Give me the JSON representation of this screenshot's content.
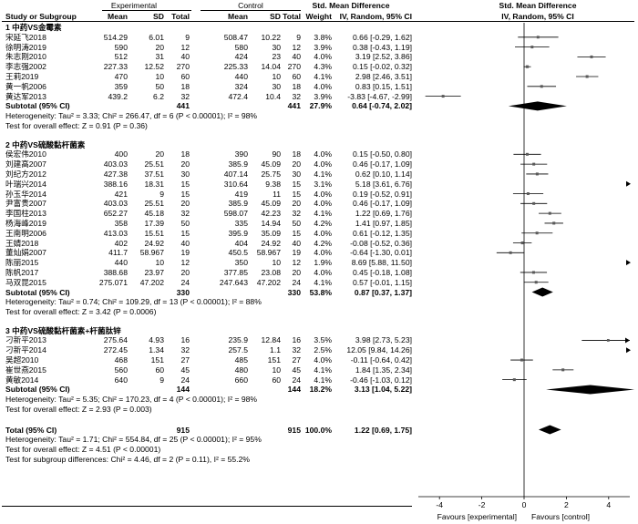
{
  "header": {
    "experimental": "Experimental",
    "control": "Control",
    "smd_title": "Std. Mean Difference",
    "study": "Study or Subgroup",
    "mean": "Mean",
    "sd": "SD",
    "total": "Total",
    "weight": "Weight",
    "ci_method": "IV, Random, 95% CI"
  },
  "groups": [
    {
      "title": "1 中药VS金霉素",
      "studies": [
        {
          "name": "宋延飞2018",
          "e_mean": "514.29",
          "e_sd": "6.01",
          "e_n": "9",
          "c_mean": "508.47",
          "c_sd": "10.22",
          "c_n": "9",
          "weight": "3.8%",
          "ci": "0.66 [-0.29, 1.62]"
        },
        {
          "name": "徐明涛2019",
          "e_mean": "590",
          "e_sd": "20",
          "e_n": "12",
          "c_mean": "580",
          "c_sd": "30",
          "c_n": "12",
          "weight": "3.9%",
          "ci": "0.38 [-0.43, 1.19]"
        },
        {
          "name": "朱志刚2010",
          "e_mean": "512",
          "e_sd": "31",
          "e_n": "40",
          "c_mean": "424",
          "c_sd": "23",
          "c_n": "40",
          "weight": "4.0%",
          "ci": "3.19 [2.52, 3.86]"
        },
        {
          "name": "李志强2002",
          "e_mean": "227.33",
          "e_sd": "12.52",
          "e_n": "270",
          "c_mean": "225.33",
          "c_sd": "14.04",
          "c_n": "270",
          "weight": "4.3%",
          "ci": "0.15 [-0.02, 0.32]"
        },
        {
          "name": "王莉2019",
          "e_mean": "470",
          "e_sd": "10",
          "e_n": "60",
          "c_mean": "440",
          "c_sd": "10",
          "c_n": "60",
          "weight": "4.1%",
          "ci": "2.98 [2.46, 3.51]"
        },
        {
          "name": "黄一帆2006",
          "e_mean": "359",
          "e_sd": "50",
          "e_n": "18",
          "c_mean": "324",
          "c_sd": "30",
          "c_n": "18",
          "weight": "4.0%",
          "ci": "0.83 [0.15, 1.51]"
        },
        {
          "name": "黄达军2013",
          "e_mean": "439.2",
          "e_sd": "6.2",
          "e_n": "32",
          "c_mean": "472.4",
          "c_sd": "10.4",
          "c_n": "32",
          "weight": "3.9%",
          "ci": "-3.83 [-4.67, -2.99]"
        }
      ],
      "subtotal": {
        "label": "Subtotal (95% CI)",
        "e_n": "441",
        "c_n": "441",
        "weight": "27.9%",
        "ci": "0.64 [-0.74, 2.02]"
      },
      "heterogeneity": "Heterogeneity: Tau² = 3.33; Chi² = 266.47, df = 6 (P < 0.00001); I² = 98%",
      "overall_effect": "Test for overall effect: Z = 0.91 (P = 0.36)"
    },
    {
      "title": "2 中药VS硫酸黏杆菌素",
      "studies": [
        {
          "name": "侯宏伟2010",
          "e_mean": "400",
          "e_sd": "20",
          "e_n": "18",
          "c_mean": "390",
          "c_sd": "90",
          "c_n": "18",
          "weight": "4.0%",
          "ci": "0.15 [-0.50, 0.80]"
        },
        {
          "name": "刘建高2007",
          "e_mean": "403.03",
          "e_sd": "25.51",
          "e_n": "20",
          "c_mean": "385.9",
          "c_sd": "45.09",
          "c_n": "20",
          "weight": "4.0%",
          "ci": "0.46 [-0.17, 1.09]"
        },
        {
          "name": "刘纪方2012",
          "e_mean": "427.38",
          "e_sd": "37.51",
          "e_n": "30",
          "c_mean": "407.14",
          "c_sd": "25.75",
          "c_n": "30",
          "weight": "4.1%",
          "ci": "0.62 [0.10, 1.14]"
        },
        {
          "name": "叶瑞兴2014",
          "e_mean": "388.16",
          "e_sd": "18.31",
          "e_n": "15",
          "c_mean": "310.64",
          "c_sd": "9.38",
          "c_n": "15",
          "weight": "3.1%",
          "ci": "5.18 [3.61, 6.76]"
        },
        {
          "name": "孙玉华2014",
          "e_mean": "421",
          "e_sd": "9",
          "e_n": "15",
          "c_mean": "419",
          "c_sd": "11",
          "c_n": "15",
          "weight": "4.0%",
          "ci": "0.19 [-0.52, 0.91]"
        },
        {
          "name": "尹富贵2007",
          "e_mean": "403.03",
          "e_sd": "25.51",
          "e_n": "20",
          "c_mean": "385.9",
          "c_sd": "45.09",
          "c_n": "20",
          "weight": "4.0%",
          "ci": "0.46 [-0.17, 1.09]"
        },
        {
          "name": "李国柱2013",
          "e_mean": "652.27",
          "e_sd": "45.18",
          "e_n": "32",
          "c_mean": "598.07",
          "c_sd": "42.23",
          "c_n": "32",
          "weight": "4.1%",
          "ci": "1.22 [0.69, 1.76]"
        },
        {
          "name": "杨海峰2019",
          "e_mean": "358",
          "e_sd": "17.39",
          "e_n": "50",
          "c_mean": "335",
          "c_sd": "14.94",
          "c_n": "50",
          "weight": "4.2%",
          "ci": "1.41 [0.97, 1.85]"
        },
        {
          "name": "王南明2006",
          "e_mean": "413.03",
          "e_sd": "15.51",
          "e_n": "15",
          "c_mean": "395.9",
          "c_sd": "35.09",
          "c_n": "15",
          "weight": "4.0%",
          "ci": "0.61 [-0.12, 1.35]"
        },
        {
          "name": "王婧2018",
          "e_mean": "402",
          "e_sd": "24.92",
          "e_n": "40",
          "c_mean": "404",
          "c_sd": "24.92",
          "c_n": "40",
          "weight": "4.2%",
          "ci": "-0.08 [-0.52, 0.36]"
        },
        {
          "name": "董灿娟2007",
          "e_mean": "411.7",
          "e_sd": "58.967",
          "e_n": "19",
          "c_mean": "450.5",
          "c_sd": "58.967",
          "c_n": "19",
          "weight": "4.0%",
          "ci": "-0.64 [-1.30, 0.01]"
        },
        {
          "name": "陈丽2015",
          "e_mean": "440",
          "e_sd": "10",
          "e_n": "12",
          "c_mean": "350",
          "c_sd": "10",
          "c_n": "12",
          "weight": "1.9%",
          "ci": "8.69 [5.88, 11.50]"
        },
        {
          "name": "陈帆2017",
          "e_mean": "388.68",
          "e_sd": "23.97",
          "e_n": "20",
          "c_mean": "377.85",
          "c_sd": "23.08",
          "c_n": "20",
          "weight": "4.0%",
          "ci": "0.45 [-0.18, 1.08]"
        },
        {
          "name": "马双昆2015",
          "e_mean": "275.071",
          "e_sd": "47.202",
          "e_n": "24",
          "c_mean": "247.643",
          "c_sd": "47.202",
          "c_n": "24",
          "weight": "4.1%",
          "ci": "0.57 [-0.01, 1.15]"
        }
      ],
      "subtotal": {
        "label": "Subtotal (95% CI)",
        "e_n": "330",
        "c_n": "330",
        "weight": "53.8%",
        "ci": "0.87 [0.37, 1.37]"
      },
      "heterogeneity": "Heterogeneity: Tau² = 0.74; Chi² = 109.29, df = 13 (P < 0.00001); I² = 88%",
      "overall_effect": "Test for overall effect: Z = 3.42 (P = 0.0006)"
    },
    {
      "title": "3 中药VS硫酸黏杆菌素+杆菌肽锌",
      "studies": [
        {
          "name": "刁新平2013",
          "e_mean": "275.64",
          "e_sd": "4.93",
          "e_n": "16",
          "c_mean": "235.9",
          "c_sd": "12.84",
          "c_n": "16",
          "weight": "3.5%",
          "ci": "3.98 [2.73, 5.23]"
        },
        {
          "name": "刁新平2014",
          "e_mean": "272.45",
          "e_sd": "1.34",
          "e_n": "32",
          "c_mean": "257.5",
          "c_sd": "1.1",
          "c_n": "32",
          "weight": "2.5%",
          "ci": "12.05 [9.84, 14.26]"
        },
        {
          "name": "吴超2010",
          "e_mean": "468",
          "e_sd": "151",
          "e_n": "27",
          "c_mean": "485",
          "c_sd": "151",
          "c_n": "27",
          "weight": "4.0%",
          "ci": "-0.11 [-0.64, 0.42]"
        },
        {
          "name": "崔世燕2015",
          "e_mean": "560",
          "e_sd": "60",
          "e_n": "45",
          "c_mean": "480",
          "c_sd": "10",
          "c_n": "45",
          "weight": "4.1%",
          "ci": "1.84 [1.35, 2.34]"
        },
        {
          "name": "黄敏2014",
          "e_mean": "640",
          "e_sd": "9",
          "e_n": "24",
          "c_mean": "660",
          "c_sd": "60",
          "c_n": "24",
          "weight": "4.1%",
          "ci": "-0.46 [-1.03, 0.12]"
        }
      ],
      "subtotal": {
        "label": "Subtotal (95% CI)",
        "e_n": "144",
        "c_n": "144",
        "weight": "18.2%",
        "ci": "3.13 [1.04, 5.22]"
      },
      "heterogeneity": "Heterogeneity: Tau² = 5.35; Chi² = 170.23, df = 4 (P < 0.00001); I² = 98%",
      "overall_effect": "Test for overall effect: Z = 2.93 (P = 0.003)"
    }
  ],
  "total": {
    "label": "Total (95% CI)",
    "e_n": "915",
    "c_n": "915",
    "weight": "100.0%",
    "ci": "1.22 [0.69, 1.75]",
    "heterogeneity": "Heterogeneity: Tau² = 1.71; Chi² = 554.84, df = 25 (P < 0.00001); I² = 95%",
    "overall_effect": "Test for overall effect: Z = 4.51 (P < 0.00001)",
    "subgroup_diff": "Test for subgroup differences: Chi² = 4.46, df = 2 (P = 0.11), I² = 55.2%"
  },
  "axis": {
    "ticks": [
      "-4",
      "-2",
      "0",
      "2",
      "4"
    ],
    "favours_left": "Favours [experimental]",
    "favours_right": "Favours [control]"
  },
  "chart_data": {
    "type": "forest",
    "title": "Std. Mean Difference, IV, Random, 95% CI",
    "xlim": [
      -5,
      5
    ],
    "xticks": [
      -4,
      -2,
      0,
      2,
      4
    ],
    "groups": [
      {
        "studies": [
          {
            "est": 0.66,
            "lo": -0.29,
            "hi": 1.62,
            "w": 3.8
          },
          {
            "est": 0.38,
            "lo": -0.43,
            "hi": 1.19,
            "w": 3.9
          },
          {
            "est": 3.19,
            "lo": 2.52,
            "hi": 3.86,
            "w": 4.0
          },
          {
            "est": 0.15,
            "lo": -0.02,
            "hi": 0.32,
            "w": 4.3
          },
          {
            "est": 2.98,
            "lo": 2.46,
            "hi": 3.51,
            "w": 4.1
          },
          {
            "est": 0.83,
            "lo": 0.15,
            "hi": 1.51,
            "w": 4.0
          },
          {
            "est": -3.83,
            "lo": -4.67,
            "hi": -2.99,
            "w": 3.9
          }
        ],
        "subtotal": {
          "est": 0.64,
          "lo": -0.74,
          "hi": 2.02
        }
      },
      {
        "studies": [
          {
            "est": 0.15,
            "lo": -0.5,
            "hi": 0.8,
            "w": 4.0
          },
          {
            "est": 0.46,
            "lo": -0.17,
            "hi": 1.09,
            "w": 4.0
          },
          {
            "est": 0.62,
            "lo": 0.1,
            "hi": 1.14,
            "w": 4.1
          },
          {
            "est": 5.18,
            "lo": 3.61,
            "hi": 6.76,
            "w": 3.1
          },
          {
            "est": 0.19,
            "lo": -0.52,
            "hi": 0.91,
            "w": 4.0
          },
          {
            "est": 0.46,
            "lo": -0.17,
            "hi": 1.09,
            "w": 4.0
          },
          {
            "est": 1.22,
            "lo": 0.69,
            "hi": 1.76,
            "w": 4.1
          },
          {
            "est": 1.41,
            "lo": 0.97,
            "hi": 1.85,
            "w": 4.2
          },
          {
            "est": 0.61,
            "lo": -0.12,
            "hi": 1.35,
            "w": 4.0
          },
          {
            "est": -0.08,
            "lo": -0.52,
            "hi": 0.36,
            "w": 4.2
          },
          {
            "est": -0.64,
            "lo": -1.3,
            "hi": 0.01,
            "w": 4.0
          },
          {
            "est": 8.69,
            "lo": 5.88,
            "hi": 11.5,
            "w": 1.9
          },
          {
            "est": 0.45,
            "lo": -0.18,
            "hi": 1.08,
            "w": 4.0
          },
          {
            "est": 0.57,
            "lo": -0.01,
            "hi": 1.15,
            "w": 4.1
          }
        ],
        "subtotal": {
          "est": 0.87,
          "lo": 0.37,
          "hi": 1.37
        }
      },
      {
        "studies": [
          {
            "est": 3.98,
            "lo": 2.73,
            "hi": 5.23,
            "w": 3.5
          },
          {
            "est": 12.05,
            "lo": 9.84,
            "hi": 14.26,
            "w": 2.5
          },
          {
            "est": -0.11,
            "lo": -0.64,
            "hi": 0.42,
            "w": 4.0
          },
          {
            "est": 1.84,
            "lo": 1.35,
            "hi": 2.34,
            "w": 4.1
          },
          {
            "est": -0.46,
            "lo": -1.03,
            "hi": 0.12,
            "w": 4.1
          }
        ],
        "subtotal": {
          "est": 3.13,
          "lo": 1.04,
          "hi": 5.22
        }
      }
    ],
    "total": {
      "est": 1.22,
      "lo": 0.69,
      "hi": 1.75
    }
  }
}
